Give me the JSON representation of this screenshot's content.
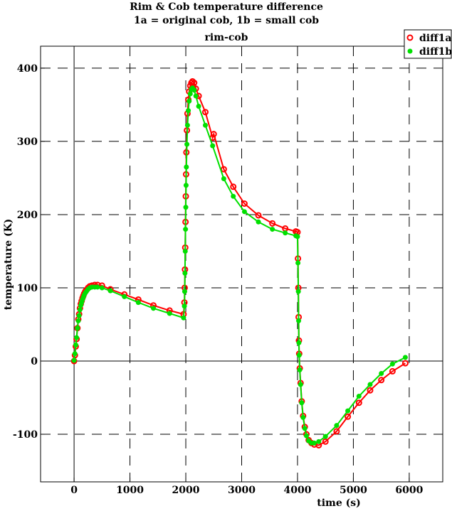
{
  "chart_data": {
    "type": "line",
    "title": "Rim & Cob temperature difference",
    "subtitle": "1a  = original cob,  1b  = small cob",
    "plot_title": "rim-cob",
    "xlabel": "time (s)",
    "ylabel": "temperature (K)",
    "xlim": [
      -600,
      6600
    ],
    "ylim": [
      -165,
      430
    ],
    "x_ticks": [
      0,
      1000,
      2000,
      3000,
      4000,
      5000,
      6000
    ],
    "y_ticks": [
      -100,
      0,
      100,
      200,
      300,
      400
    ],
    "grid": "dashed",
    "legend": "top-right",
    "series": [
      {
        "name": "diff1a",
        "color": "#ff0000",
        "marker": "open-circle",
        "points": [
          [
            0,
            0
          ],
          [
            15,
            8
          ],
          [
            30,
            20
          ],
          [
            45,
            30
          ],
          [
            60,
            45
          ],
          [
            75,
            57
          ],
          [
            90,
            64
          ],
          [
            105,
            72
          ],
          [
            120,
            78
          ],
          [
            135,
            82
          ],
          [
            150,
            86
          ],
          [
            165,
            89
          ],
          [
            180,
            92
          ],
          [
            200,
            95
          ],
          [
            220,
            97
          ],
          [
            250,
            100
          ],
          [
            280,
            102
          ],
          [
            320,
            103
          ],
          [
            370,
            104
          ],
          [
            420,
            104
          ],
          [
            500,
            103
          ],
          [
            650,
            98
          ],
          [
            900,
            91
          ],
          [
            1150,
            84
          ],
          [
            1420,
            76
          ],
          [
            1710,
            69
          ],
          [
            1960,
            64
          ],
          [
            1975,
            80
          ],
          [
            1980,
            100
          ],
          [
            1985,
            125
          ],
          [
            1990,
            155
          ],
          [
            1995,
            190
          ],
          [
            2000,
            225
          ],
          [
            2005,
            255
          ],
          [
            2010,
            285
          ],
          [
            2020,
            315
          ],
          [
            2030,
            338
          ],
          [
            2045,
            357
          ],
          [
            2060,
            368
          ],
          [
            2080,
            376
          ],
          [
            2100,
            380
          ],
          [
            2120,
            382
          ],
          [
            2150,
            380
          ],
          [
            2180,
            372
          ],
          [
            2230,
            362
          ],
          [
            2350,
            340
          ],
          [
            2480,
            305
          ],
          [
            2500,
            310
          ],
          [
            2680,
            262
          ],
          [
            2850,
            238
          ],
          [
            3050,
            215
          ],
          [
            3300,
            199
          ],
          [
            3550,
            188
          ],
          [
            3780,
            181
          ],
          [
            3970,
            177
          ],
          [
            4000,
            176
          ],
          [
            4008,
            140
          ],
          [
            4015,
            100
          ],
          [
            4020,
            60
          ],
          [
            4025,
            28
          ],
          [
            4030,
            10
          ],
          [
            4040,
            -10
          ],
          [
            4055,
            -30
          ],
          [
            4075,
            -55
          ],
          [
            4100,
            -75
          ],
          [
            4130,
            -90
          ],
          [
            4160,
            -100
          ],
          [
            4200,
            -108
          ],
          [
            4250,
            -112
          ],
          [
            4300,
            -114
          ],
          [
            4380,
            -115
          ],
          [
            4500,
            -110
          ],
          [
            4700,
            -96
          ],
          [
            4900,
            -76
          ],
          [
            5100,
            -57
          ],
          [
            5300,
            -40
          ],
          [
            5500,
            -26
          ],
          [
            5700,
            -14
          ],
          [
            5930,
            -3
          ]
        ]
      },
      {
        "name": "diff1b",
        "color": "#00e000",
        "marker": "filled-circle",
        "points": [
          [
            0,
            1
          ],
          [
            15,
            10
          ],
          [
            30,
            22
          ],
          [
            45,
            32
          ],
          [
            60,
            45
          ],
          [
            75,
            55
          ],
          [
            90,
            62
          ],
          [
            105,
            70
          ],
          [
            120,
            76
          ],
          [
            135,
            80
          ],
          [
            150,
            84
          ],
          [
            165,
            87
          ],
          [
            180,
            90
          ],
          [
            200,
            93
          ],
          [
            220,
            95
          ],
          [
            250,
            98
          ],
          [
            280,
            100
          ],
          [
            320,
            101
          ],
          [
            370,
            101
          ],
          [
            420,
            101
          ],
          [
            500,
            100
          ],
          [
            650,
            96
          ],
          [
            900,
            88
          ],
          [
            1150,
            80
          ],
          [
            1420,
            72
          ],
          [
            1710,
            65
          ],
          [
            1960,
            59
          ],
          [
            1975,
            75
          ],
          [
            1980,
            95
          ],
          [
            1985,
            120
          ],
          [
            1990,
            150
          ],
          [
            1995,
            180
          ],
          [
            2000,
            210
          ],
          [
            2005,
            240
          ],
          [
            2010,
            265
          ],
          [
            2020,
            296
          ],
          [
            2030,
            322
          ],
          [
            2045,
            342
          ],
          [
            2060,
            355
          ],
          [
            2080,
            365
          ],
          [
            2100,
            371
          ],
          [
            2120,
            373
          ],
          [
            2150,
            370
          ],
          [
            2180,
            362
          ],
          [
            2230,
            348
          ],
          [
            2350,
            322
          ],
          [
            2480,
            294
          ],
          [
            2680,
            249
          ],
          [
            2850,
            225
          ],
          [
            3050,
            204
          ],
          [
            3300,
            190
          ],
          [
            3550,
            180
          ],
          [
            3780,
            175
          ],
          [
            3970,
            171
          ],
          [
            4000,
            170
          ],
          [
            4008,
            134
          ],
          [
            4015,
            95
          ],
          [
            4020,
            55
          ],
          [
            4025,
            25
          ],
          [
            4030,
            8
          ],
          [
            4040,
            -12
          ],
          [
            4055,
            -32
          ],
          [
            4075,
            -57
          ],
          [
            4100,
            -77
          ],
          [
            4130,
            -92
          ],
          [
            4160,
            -102
          ],
          [
            4200,
            -109
          ],
          [
            4250,
            -112
          ],
          [
            4300,
            -112
          ],
          [
            4380,
            -110
          ],
          [
            4500,
            -103
          ],
          [
            4700,
            -88
          ],
          [
            4900,
            -68
          ],
          [
            5100,
            -48
          ],
          [
            5300,
            -32
          ],
          [
            5500,
            -17
          ],
          [
            5700,
            -4
          ],
          [
            5930,
            5
          ]
        ]
      }
    ]
  }
}
